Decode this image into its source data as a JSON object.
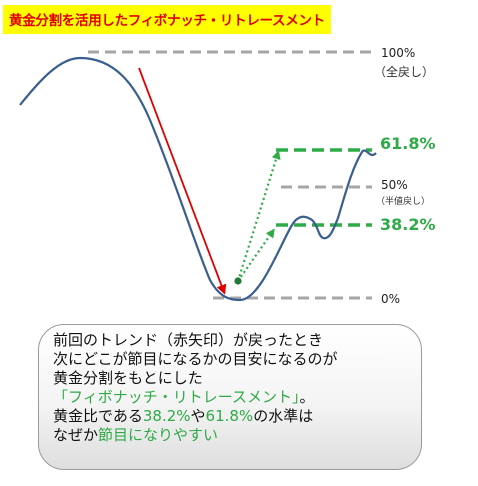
{
  "title": "黄金分割を活用したフィボナッチ・リトレースメント",
  "levels": {
    "top": {
      "pct": "100%",
      "note": "（全戻し）"
    },
    "l618": {
      "pct": "61.8%"
    },
    "l50": {
      "pct": "50%",
      "note": "（半値戻し）"
    },
    "l382": {
      "pct": "38.2%"
    },
    "bottom": {
      "pct": "0%"
    }
  },
  "colors": {
    "title_bg": "#ffff00",
    "title_text": "#e00000",
    "trend_arrow": "#e00000",
    "fib_green": "#2eaa46",
    "gray_line": "#a6a6a6",
    "curve": "#3a5f8f"
  },
  "callout": {
    "line1": "前回のトレンド（赤矢印）が戻ったとき",
    "line2": "次にどこが節目になるかの目安になるのが",
    "line3": "黄金分割をもとにした",
    "line4_green": "「フィボナッチ・リトレースメント」",
    "line4_end": "。",
    "line5_a": "黄金比である",
    "line5_b": "38.2%",
    "line5_c": "や",
    "line5_d": "61.8%",
    "line5_e": "の水準は",
    "line6_a": "なぜか",
    "line6_b": "節目になりやすい"
  }
}
